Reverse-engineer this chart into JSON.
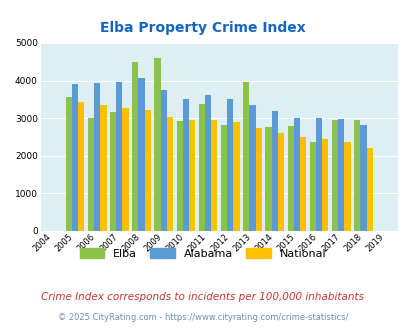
{
  "title": "Elba Property Crime Index",
  "subtitle": "Crime Index corresponds to incidents per 100,000 inhabitants",
  "footer": "© 2025 CityRating.com - https://www.cityrating.com/crime-statistics/",
  "years": [
    2004,
    2005,
    2006,
    2007,
    2008,
    2009,
    2010,
    2011,
    2012,
    2013,
    2014,
    2015,
    2016,
    2017,
    2018,
    2019
  ],
  "elba": [
    0,
    3550,
    3000,
    3150,
    4480,
    4610,
    2920,
    3370,
    2830,
    3970,
    2770,
    2800,
    2360,
    2960,
    2950,
    0
  ],
  "alabama": [
    0,
    3900,
    3940,
    3970,
    4080,
    3760,
    3510,
    3620,
    3510,
    3350,
    3190,
    3010,
    3000,
    2990,
    2830,
    0
  ],
  "national": [
    0,
    3440,
    3340,
    3270,
    3210,
    3040,
    2960,
    2960,
    2900,
    2730,
    2610,
    2490,
    2450,
    2360,
    2200,
    0
  ],
  "elba_color": "#8bc34a",
  "alabama_color": "#5b9bd5",
  "national_color": "#ffc000",
  "bg_color": "#ddeef5",
  "title_color": "#1565c0",
  "subtitle_color": "#cc3333",
  "footer_color": "#7090b0",
  "ylim": [
    0,
    5000
  ],
  "yticks": [
    0,
    1000,
    2000,
    3000,
    4000,
    5000
  ]
}
